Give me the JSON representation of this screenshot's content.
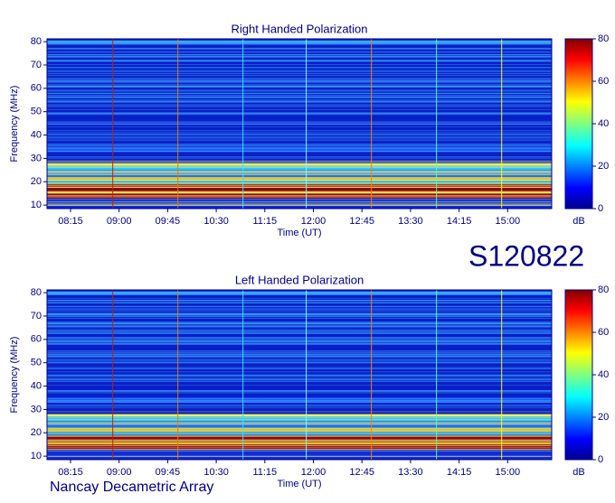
{
  "chart_data": [
    {
      "type": "spectrogram",
      "title": "Right Handed Polarization",
      "xlabel": "Time (UT)",
      "ylabel": "Frequency (MHz)",
      "xticks": [
        "08:15",
        "09:00",
        "09:45",
        "10:30",
        "11:15",
        "12:00",
        "12:45",
        "13:30",
        "14:15",
        "15:00"
      ],
      "ylim": [
        8.5,
        81.2
      ],
      "yticks": [
        10,
        20,
        30,
        40,
        50,
        60,
        70,
        80
      ],
      "colorbar": {
        "lim": [
          0,
          80
        ],
        "ticks": [
          0,
          20,
          40,
          60,
          80
        ],
        "label": "dB"
      }
    },
    {
      "type": "spectrogram",
      "title": "Left Handed Polarization",
      "xlabel": "Time (UT)",
      "ylabel": "Frequency (MHz)",
      "xticks": [
        "08:15",
        "09:00",
        "09:45",
        "10:30",
        "11:15",
        "12:00",
        "12:45",
        "13:30",
        "14:15",
        "15:00"
      ],
      "ylim": [
        8.5,
        81.2
      ],
      "yticks": [
        10,
        20,
        30,
        40,
        50,
        60,
        70,
        80
      ],
      "colorbar": {
        "lim": [
          0,
          80
        ],
        "ticks": [
          0,
          20,
          40,
          60,
          80
        ],
        "label": "dB"
      }
    }
  ],
  "stamp": "S120822",
  "footer": "Nancay Decametric Array"
}
